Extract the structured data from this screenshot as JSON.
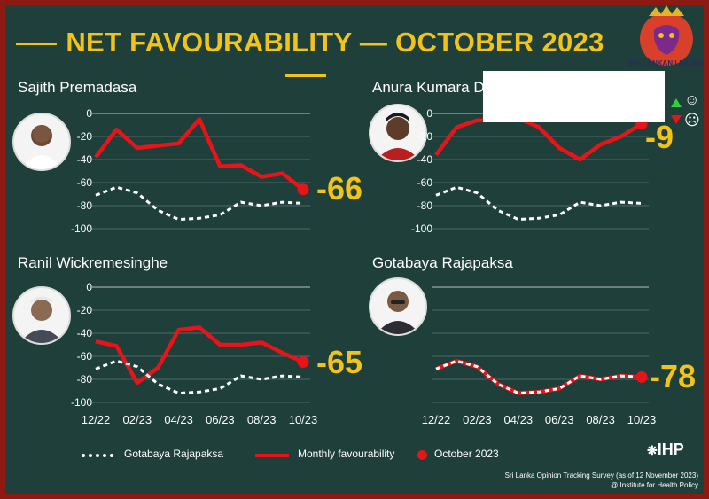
{
  "title": "NET FAVOURABILITY — OCTOBER 2023",
  "legend": {
    "gotabaya": "Gotabaya Rajapaksa",
    "monthly": "Monthly favourability",
    "october": "October 2023"
  },
  "source": {
    "line1": "Sri Lanka Opinion Tracking Survey (as of 12 November 2023)",
    "line2": "@ Institute for Health Policy",
    "logo": "IHP"
  },
  "watermark": "SRI LANKAN LEADER",
  "colors": {
    "background": "#1f3f3a",
    "monthly": "#e8141a",
    "reference": "#ffffff",
    "accent": "#f2c318"
  },
  "icons": [
    "up-triangle-icon",
    "smile-icon",
    "down-triangle-icon",
    "frown-icon"
  ],
  "chart_data": [
    {
      "type": "line",
      "name": "Sajith Premadasa",
      "x": [
        "12/22",
        "01/23",
        "02/23",
        "03/23",
        "04/23",
        "05/23",
        "06/23",
        "07/23",
        "08/23",
        "09/23",
        "10/23"
      ],
      "yticks": [
        0,
        -20,
        -40,
        -60,
        -80,
        -100
      ],
      "ylim": [
        -100,
        0
      ],
      "series": [
        {
          "name": "Monthly favourability",
          "values": [
            -38,
            -14,
            -30,
            -28,
            -26,
            -5,
            -46,
            -45,
            -55,
            -52,
            -66
          ]
        },
        {
          "name": "Gotabaya Rajapaksa",
          "values": [
            -71,
            -64,
            -69,
            -84,
            -92,
            -91,
            -88,
            -77,
            -80,
            -77,
            -78
          ]
        }
      ],
      "end_label": "-66"
    },
    {
      "type": "line",
      "name": "Anura Kumara Dissanayake",
      "x": [
        "12/22",
        "01/23",
        "02/23",
        "03/23",
        "04/23",
        "05/23",
        "06/23",
        "07/23",
        "08/23",
        "09/23",
        "10/23"
      ],
      "yticks": [
        0,
        -20,
        -40,
        -60,
        -80,
        -100
      ],
      "ylim": [
        -100,
        0
      ],
      "series": [
        {
          "name": "Monthly favourability",
          "values": [
            -36,
            -12,
            -6,
            -6,
            -4,
            -12,
            -30,
            -40,
            -27,
            -20,
            -9
          ]
        },
        {
          "name": "Gotabaya Rajapaksa",
          "values": [
            -71,
            -64,
            -69,
            -84,
            -92,
            -91,
            -88,
            -77,
            -80,
            -77,
            -78
          ]
        }
      ],
      "end_label": "-9"
    },
    {
      "type": "line",
      "name": "Ranil Wickremesinghe",
      "x": [
        "12/22",
        "01/23",
        "02/23",
        "03/23",
        "04/23",
        "05/23",
        "06/23",
        "07/23",
        "08/23",
        "09/23",
        "10/23"
      ],
      "xticks": [
        "12/22",
        "02/23",
        "04/23",
        "06/23",
        "08/23",
        "10/23"
      ],
      "yticks": [
        0,
        -20,
        -40,
        -60,
        -80,
        -100
      ],
      "ylim": [
        -100,
        0
      ],
      "series": [
        {
          "name": "Monthly favourability",
          "values": [
            -47,
            -51,
            -83,
            -70,
            -37,
            -35,
            -50,
            -50,
            -48,
            -57,
            -65
          ]
        },
        {
          "name": "Gotabaya Rajapaksa",
          "values": [
            -71,
            -64,
            -69,
            -84,
            -92,
            -91,
            -88,
            -77,
            -80,
            -77,
            -78
          ]
        }
      ],
      "end_label": "-65"
    },
    {
      "type": "line",
      "name": "Gotabaya Rajapaksa",
      "x": [
        "12/22",
        "01/23",
        "02/23",
        "03/23",
        "04/23",
        "05/23",
        "06/23",
        "07/23",
        "08/23",
        "09/23",
        "10/23"
      ],
      "xticks": [
        "12/22",
        "02/23",
        "04/23",
        "06/23",
        "08/23",
        "10/23"
      ],
      "ylim": [
        -100,
        0
      ],
      "series": [
        {
          "name": "Monthly favourability",
          "values": [
            -71,
            -64,
            -69,
            -84,
            -92,
            -91,
            -88,
            -77,
            -80,
            -77,
            -78
          ]
        },
        {
          "name": "Gotabaya Rajapaksa",
          "values": [
            -71,
            -64,
            -69,
            -84,
            -92,
            -91,
            -88,
            -77,
            -80,
            -77,
            -78
          ]
        }
      ],
      "end_label": "-78"
    }
  ]
}
